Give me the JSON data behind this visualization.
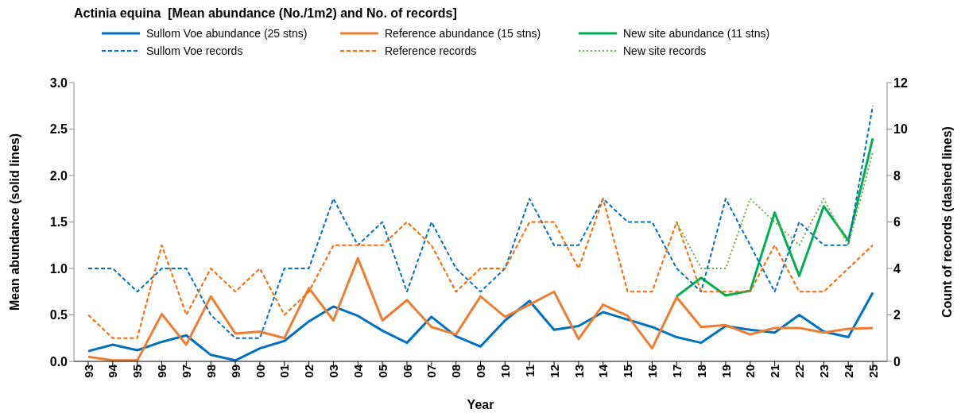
{
  "chart_data": {
    "type": "line",
    "title": "Actinia equina  [Mean abundance (No./1m2) and No. of records]",
    "xlabel": "Year",
    "ylabel": "Mean abundance (solid lines)",
    "y2label": "Count of records (dashed lines)",
    "categories": [
      "93",
      "94",
      "95",
      "96",
      "97",
      "98",
      "99",
      "00",
      "01",
      "02",
      "03",
      "04",
      "05",
      "06",
      "07",
      "08",
      "09",
      "10",
      "11",
      "12",
      "13",
      "14",
      "15",
      "16",
      "17",
      "18",
      "19",
      "20",
      "21",
      "22",
      "23",
      "24",
      "25"
    ],
    "series": [
      {
        "name": "Sullom Voe abundance (25 stns)",
        "color": "#0070c0",
        "line_style": "solid",
        "values": [
          0.11,
          0.18,
          0.12,
          0.21,
          0.28,
          0.07,
          0.01,
          0.14,
          0.22,
          0.43,
          0.59,
          0.49,
          0.33,
          0.2,
          0.48,
          0.27,
          0.16,
          0.44,
          0.65,
          0.34,
          0.38,
          0.53,
          0.45,
          0.37,
          0.26,
          0.2,
          0.38,
          0.34,
          0.31,
          0.5,
          0.32,
          0.26,
          0.74
        ]
      },
      {
        "name": "Reference abundance (15 stns)",
        "color": "#ed7d31",
        "line_style": "solid",
        "values": [
          0.05,
          0.01,
          0.01,
          0.51,
          0.18,
          0.7,
          0.3,
          0.32,
          0.25,
          0.79,
          0.44,
          1.11,
          0.44,
          0.66,
          0.37,
          0.29,
          0.7,
          0.48,
          0.61,
          0.75,
          0.24,
          0.61,
          0.49,
          0.14,
          0.69,
          0.37,
          0.39,
          0.29,
          0.36,
          0.36,
          0.31,
          0.35,
          0.36
        ]
      },
      {
        "name": "New site abundance (11 stns)",
        "color": "#00b050",
        "line_style": "solid",
        "values": [
          null,
          null,
          null,
          null,
          null,
          null,
          null,
          null,
          null,
          null,
          null,
          null,
          null,
          null,
          null,
          null,
          null,
          null,
          null,
          null,
          null,
          null,
          null,
          null,
          0.7,
          0.9,
          0.71,
          0.76,
          1.6,
          0.92,
          1.67,
          1.3,
          2.4
        ]
      },
      {
        "name": "Sullom Voe records",
        "color": "#0070c0",
        "line_style": "dashed",
        "axis": "y2",
        "values": [
          4,
          4,
          3,
          4,
          4,
          2,
          1,
          1,
          4,
          4,
          7,
          5,
          6,
          3,
          6,
          4,
          3,
          4,
          7,
          5,
          5,
          7,
          6,
          6,
          4,
          3,
          7,
          5,
          3,
          6,
          5,
          5,
          11
        ]
      },
      {
        "name": "Reference records",
        "color": "#ff6600",
        "line_style": "dashed",
        "axis": "y2",
        "values": [
          2,
          1,
          1,
          5,
          2,
          4,
          3,
          4,
          2,
          3,
          5,
          5,
          5,
          6,
          5,
          3,
          4,
          4,
          6,
          6,
          4,
          7,
          3,
          3,
          6,
          3,
          3,
          3,
          5,
          3,
          3,
          4,
          5
        ]
      },
      {
        "name": "New site records",
        "color": "#70ad47",
        "line_style": "dotted",
        "axis": "y2",
        "values": [
          null,
          null,
          null,
          null,
          null,
          null,
          null,
          null,
          null,
          null,
          null,
          null,
          null,
          null,
          null,
          null,
          null,
          null,
          null,
          null,
          null,
          null,
          null,
          null,
          6,
          4,
          4,
          7,
          6,
          5,
          7,
          5,
          9
        ]
      }
    ],
    "ylim": [
      0,
      3
    ],
    "yticks": [
      {
        "value": 0,
        "label": "0.0"
      },
      {
        "value": 0.5,
        "label": "0.5"
      },
      {
        "value": 1,
        "label": "1.0"
      },
      {
        "value": 1.5,
        "label": "1.5"
      },
      {
        "value": 2,
        "label": "2.0"
      },
      {
        "value": 2.5,
        "label": "2.5"
      },
      {
        "value": 3,
        "label": "3.0"
      }
    ],
    "y2lim": [
      0,
      12
    ],
    "y2ticks": [
      0,
      2,
      4,
      6,
      8,
      10,
      12
    ],
    "grid": false,
    "legend": "top",
    "marker": "none"
  }
}
